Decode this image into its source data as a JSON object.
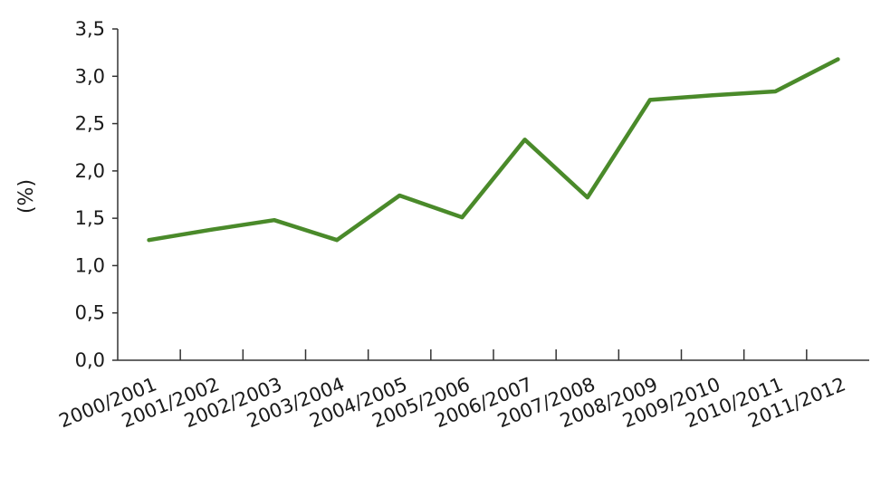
{
  "chart_data": {
    "type": "line",
    "title": "",
    "xlabel": "",
    "ylabel": "(%)",
    "ylim": [
      0,
      3.5
    ],
    "yticks": [
      "0,0",
      "0,5",
      "1,0",
      "1,5",
      "2,0",
      "2,5",
      "3,0",
      "3,5"
    ],
    "ytick_values": [
      0,
      0.5,
      1.0,
      1.5,
      2.0,
      2.5,
      3.0,
      3.5
    ],
    "categories": [
      "2000/2001",
      "2001/2002",
      "2002/2003",
      "2003/2004",
      "2004/2005",
      "2005/2006",
      "2006/2007",
      "2007/2008",
      "2008/2009",
      "2009/2010",
      "2010/2011",
      "2011/2012"
    ],
    "grid": false,
    "legend": "none",
    "series": [
      {
        "color": "#4a8a2a",
        "values": [
          1.27,
          1.38,
          1.48,
          1.27,
          1.74,
          1.51,
          2.33,
          1.72,
          2.75,
          2.8,
          2.84,
          3.18
        ]
      }
    ]
  }
}
